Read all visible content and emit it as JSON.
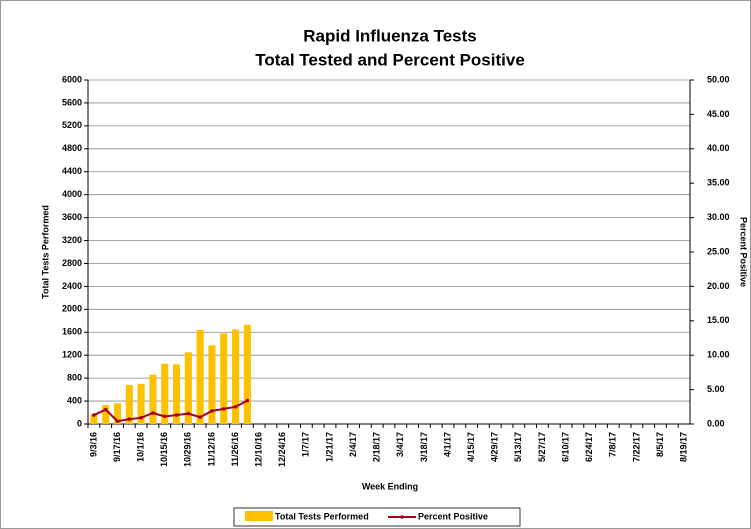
{
  "chart_data": {
    "type": "bar-line",
    "title": "Rapid Influenza Tests",
    "subtitle": "Total Tested and Percent Positive",
    "x_label": "Week Ending",
    "y_label": "Total Tests Performed",
    "y2_label": "Percent Positive",
    "categories": [
      "9/3/16",
      null,
      "9/17/16",
      null,
      "10/1/16",
      null,
      "10/15/16",
      null,
      "10/29/16",
      null,
      "11/12/16",
      null,
      "11/26/16",
      null,
      "12/10/16",
      null,
      "12/24/16",
      null,
      "1/7/17",
      null,
      "1/21/17",
      null,
      "2/4/17",
      null,
      "2/18/17",
      null,
      "3/4/17",
      null,
      "3/18/17",
      null,
      "4/1/17",
      null,
      "4/15/17",
      null,
      "4/29/17",
      null,
      "5/13/17",
      null,
      "5/27/17",
      null,
      "6/10/17",
      null,
      "6/24/17",
      null,
      "7/8/17",
      null,
      "7/22/17",
      null,
      "8/5/17",
      null,
      "8/19/17"
    ],
    "series": [
      {
        "name": "Total Tests Performed",
        "color": "#ffc000",
        "kind": "bar",
        "values": [
          170,
          330,
          360,
          680,
          700,
          860,
          1050,
          1040,
          1250,
          1640,
          1370,
          1580,
          1650,
          1730,
          null,
          null,
          null,
          null,
          null,
          null,
          null,
          null,
          null,
          null,
          null,
          null,
          null,
          null,
          null,
          null,
          null,
          null,
          null,
          null,
          null,
          null,
          null,
          null,
          null,
          null,
          null,
          null,
          null,
          null,
          null,
          null,
          null,
          null,
          null,
          null,
          null
        ]
      },
      {
        "name": "Percent Positive",
        "color": "#a50021",
        "kind": "line",
        "axis": "y2",
        "values": [
          1.3,
          2.1,
          0.4,
          0.7,
          0.9,
          1.6,
          1.1,
          1.3,
          1.5,
          1.0,
          1.9,
          2.2,
          2.5,
          3.4,
          null,
          null,
          null,
          null,
          null,
          null,
          null,
          null,
          null,
          null,
          null,
          null,
          null,
          null,
          null,
          null,
          null,
          null,
          null,
          null,
          null,
          null,
          null,
          null,
          null,
          null,
          null,
          null,
          null,
          null,
          null,
          null,
          null,
          null,
          null,
          null,
          null
        ]
      }
    ],
    "ylim": [
      0,
      6000
    ],
    "yticks": [
      0,
      400,
      800,
      1200,
      1600,
      2000,
      2400,
      2800,
      3200,
      3600,
      4000,
      4400,
      4800,
      5200,
      5600,
      6000
    ],
    "y2lim": [
      0,
      50
    ],
    "y2ticks": [
      {
        "value": 0,
        "label": "0.00"
      },
      {
        "value": 5,
        "label": "5.00"
      },
      {
        "value": 10,
        "label": "10.00"
      },
      {
        "value": 15,
        "label": "15.00"
      },
      {
        "value": 20,
        "label": "20.00"
      },
      {
        "value": 25,
        "label": "25.00"
      },
      {
        "value": 30,
        "label": "30.00"
      },
      {
        "value": 35,
        "label": "35.00"
      },
      {
        "value": 40,
        "label": "40.00"
      },
      {
        "value": 45,
        "label": "45.00"
      },
      {
        "value": 50,
        "label": "50.00"
      }
    ],
    "grid": true,
    "legend": "bottom"
  }
}
